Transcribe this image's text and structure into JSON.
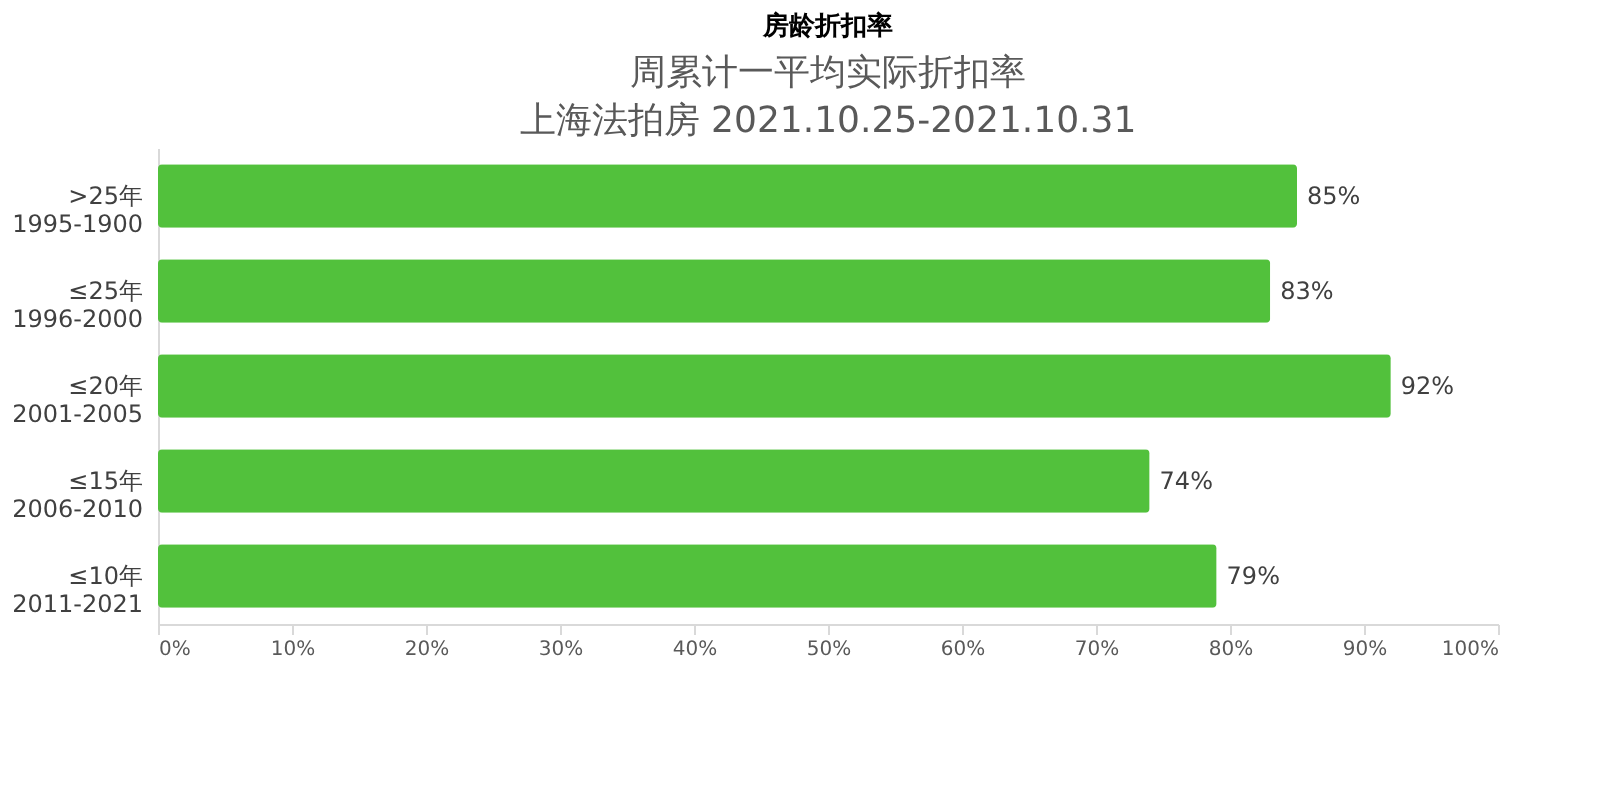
{
  "chart_data": {
    "type": "bar",
    "orientation": "horizontal",
    "annotations": [
      "房龄折扣率"
    ],
    "title": "周累计一平均实际折扣率",
    "subtitle": "上海法拍房  2021.10.25-2021.10.31",
    "categories": [
      ">25年\n1995-1900",
      "≤25年\n1996-2000",
      "≤20年\n2001-2005",
      "≤15年\n2006-2010",
      "≤10年\n2011-2021"
    ],
    "values": [
      85,
      83,
      92,
      74,
      79
    ],
    "color": "#52c13c",
    "value_labels": [
      "85%",
      "83%",
      "92%",
      "74%",
      "79%"
    ],
    "xlim": [
      0,
      100
    ],
    "xticks": [
      {
        "value": 0,
        "label": "0%"
      },
      {
        "value": 10,
        "label": "10%"
      },
      {
        "value": 20,
        "label": "20%"
      },
      {
        "value": 30,
        "label": "30%"
      },
      {
        "value": 40,
        "label": "40%"
      },
      {
        "value": 50,
        "label": "50%"
      },
      {
        "value": 60,
        "label": "60%"
      },
      {
        "value": 70,
        "label": "70%"
      },
      {
        "value": 80,
        "label": "80%"
      },
      {
        "value": 90,
        "label": "90%"
      },
      {
        "value": 100,
        "label": "100%"
      }
    ],
    "grid": false
  }
}
